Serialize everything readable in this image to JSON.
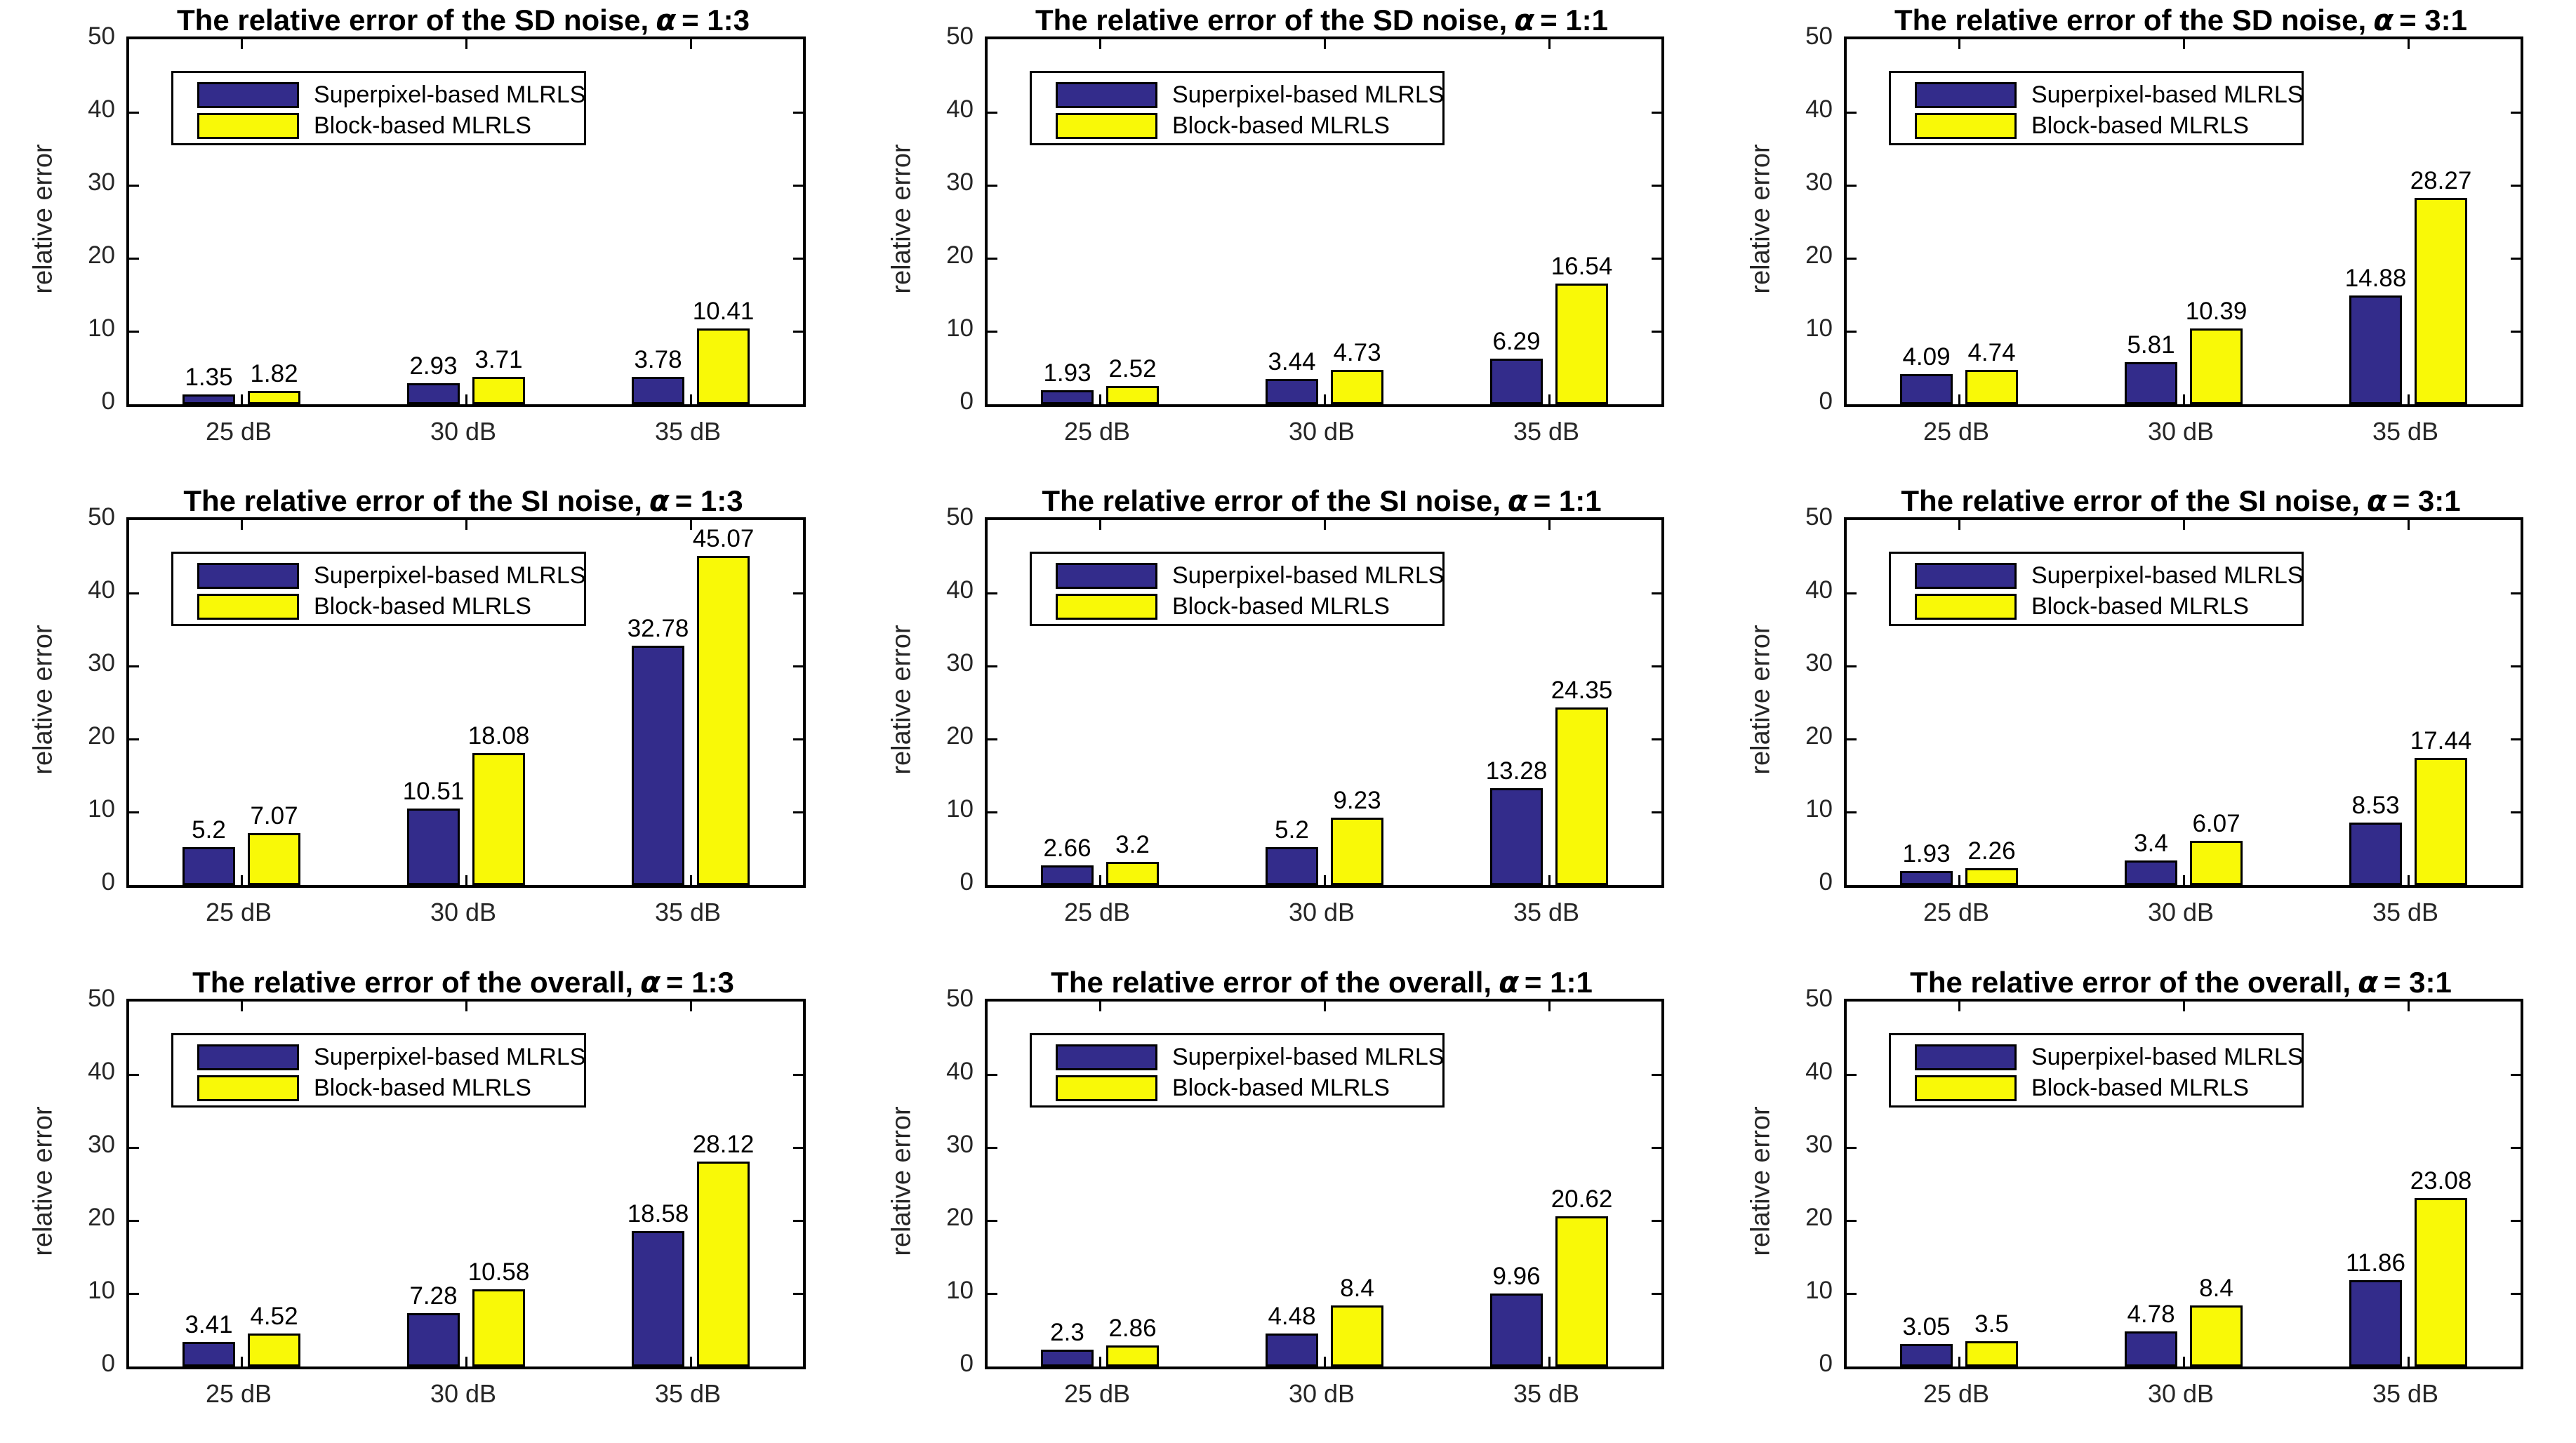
{
  "figure": {
    "ylabel": "relative error",
    "categories": [
      "25 dB",
      "30 dB",
      "35 dB"
    ],
    "yticks": [
      0,
      10,
      20,
      30,
      40,
      50
    ],
    "ylim": [
      0,
      50
    ],
    "alpha_symbol": "α",
    "legend": [
      "Superpixel-based MLRLS",
      "Block-based MLRLS"
    ],
    "colors": {
      "superpixel_bar": "#332C8B",
      "block_bar": "#F9F907",
      "bar_edge": "#000000",
      "axis": "#000000",
      "tick_label": "#262626",
      "background": "#ffffff"
    }
  },
  "chart_data": [
    {
      "type": "bar",
      "title": "The relative error of the SD noise,",
      "alpha": "= 1:3",
      "categories": [
        "25 dB",
        "30 dB",
        "35 dB"
      ],
      "ylabel": "relative error",
      "ylim": [
        0,
        50
      ],
      "legend_position": "upper-left",
      "grid": false,
      "series": [
        {
          "name": "Superpixel-based MLRLS",
          "values": [
            1.35,
            2.93,
            3.78
          ]
        },
        {
          "name": "Block-based MLRLS",
          "values": [
            1.82,
            3.71,
            10.41
          ]
        }
      ]
    },
    {
      "type": "bar",
      "title": "The relative error of the SD noise,",
      "alpha": "= 1:1",
      "categories": [
        "25 dB",
        "30 dB",
        "35 dB"
      ],
      "ylabel": "relative error",
      "ylim": [
        0,
        50
      ],
      "legend_position": "upper-left",
      "grid": false,
      "series": [
        {
          "name": "Superpixel-based MLRLS",
          "values": [
            1.93,
            3.44,
            6.29
          ]
        },
        {
          "name": "Block-based MLRLS",
          "values": [
            2.52,
            4.73,
            16.54
          ]
        }
      ]
    },
    {
      "type": "bar",
      "title": "The relative error of the SD noise,",
      "alpha": "= 3:1",
      "categories": [
        "25 dB",
        "30 dB",
        "35 dB"
      ],
      "ylabel": "relative error",
      "ylim": [
        0,
        50
      ],
      "legend_position": "upper-left",
      "grid": false,
      "series": [
        {
          "name": "Superpixel-based MLRLS",
          "values": [
            4.09,
            5.81,
            14.88
          ]
        },
        {
          "name": "Block-based MLRLS",
          "values": [
            4.74,
            10.39,
            28.27
          ]
        }
      ]
    },
    {
      "type": "bar",
      "title": "The relative error of the SI noise,",
      "alpha": "= 1:3",
      "categories": [
        "25 dB",
        "30 dB",
        "35 dB"
      ],
      "ylabel": "relative error",
      "ylim": [
        0,
        50
      ],
      "legend_position": "upper-left",
      "grid": false,
      "series": [
        {
          "name": "Superpixel-based MLRLS",
          "values": [
            5.2,
            10.51,
            32.78
          ]
        },
        {
          "name": "Block-based MLRLS",
          "values": [
            7.07,
            18.08,
            45.07
          ]
        }
      ]
    },
    {
      "type": "bar",
      "title": "The relative error of the SI noise,",
      "alpha": "= 1:1",
      "categories": [
        "25 dB",
        "30 dB",
        "35 dB"
      ],
      "ylabel": "relative error",
      "ylim": [
        0,
        50
      ],
      "legend_position": "upper-left",
      "grid": false,
      "series": [
        {
          "name": "Superpixel-based MLRLS",
          "values": [
            2.66,
            5.2,
            13.28
          ]
        },
        {
          "name": "Block-based MLRLS",
          "values": [
            3.2,
            9.23,
            24.35
          ]
        }
      ]
    },
    {
      "type": "bar",
      "title": "The relative error of the SI noise,",
      "alpha": "= 3:1",
      "categories": [
        "25 dB",
        "30 dB",
        "35 dB"
      ],
      "ylabel": "relative error",
      "ylim": [
        0,
        50
      ],
      "legend_position": "upper-left",
      "grid": false,
      "series": [
        {
          "name": "Superpixel-based MLRLS",
          "values": [
            1.93,
            3.4,
            8.53
          ]
        },
        {
          "name": "Block-based MLRLS",
          "values": [
            2.26,
            6.07,
            17.44
          ]
        }
      ]
    },
    {
      "type": "bar",
      "title": "The relative error of the overall,",
      "alpha": "= 1:3",
      "categories": [
        "25 dB",
        "30 dB",
        "35 dB"
      ],
      "ylabel": "relative error",
      "ylim": [
        0,
        50
      ],
      "legend_position": "upper-left",
      "grid": false,
      "series": [
        {
          "name": "Superpixel-based MLRLS",
          "values": [
            3.41,
            7.28,
            18.58
          ]
        },
        {
          "name": "Block-based MLRLS",
          "values": [
            4.52,
            10.58,
            28.12
          ]
        }
      ]
    },
    {
      "type": "bar",
      "title": "The relative error of the overall,",
      "alpha": "= 1:1",
      "categories": [
        "25 dB",
        "30 dB",
        "35 dB"
      ],
      "ylabel": "relative error",
      "ylim": [
        0,
        50
      ],
      "legend_position": "upper-left",
      "grid": false,
      "series": [
        {
          "name": "Superpixel-based MLRLS",
          "values": [
            2.3,
            4.48,
            9.96
          ]
        },
        {
          "name": "Block-based MLRLS",
          "values": [
            2.86,
            8.4,
            20.62
          ]
        }
      ]
    },
    {
      "type": "bar",
      "title": "The relative error of the overall,",
      "alpha": "= 3:1",
      "categories": [
        "25 dB",
        "30 dB",
        "35 dB"
      ],
      "ylabel": "relative error",
      "ylim": [
        0,
        50
      ],
      "legend_position": "upper-left",
      "grid": false,
      "series": [
        {
          "name": "Superpixel-based MLRLS",
          "values": [
            3.05,
            4.78,
            11.86
          ]
        },
        {
          "name": "Block-based MLRLS",
          "values": [
            3.5,
            8.4,
            23.08
          ]
        }
      ]
    }
  ]
}
